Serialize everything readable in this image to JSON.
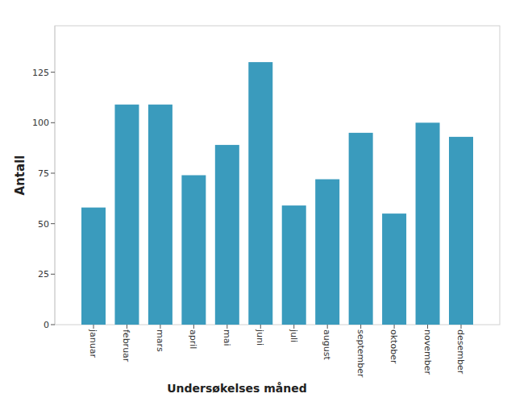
{
  "chart_data": {
    "type": "bar",
    "x_label": "Undersøkelses måned",
    "y_label": "Antall",
    "categories": [
      "januar",
      "februar",
      "mars",
      "april",
      "mai",
      "juni",
      "juli",
      "august",
      "september",
      "oktober",
      "november",
      "desember"
    ],
    "values": [
      58,
      109,
      109,
      74,
      89,
      130,
      59,
      72,
      95,
      55,
      100,
      93
    ],
    "color": "#3a9bbd",
    "ylim": [
      0,
      148
    ],
    "yticks": [
      0,
      25,
      50,
      75,
      100,
      125
    ],
    "grid": false
  }
}
